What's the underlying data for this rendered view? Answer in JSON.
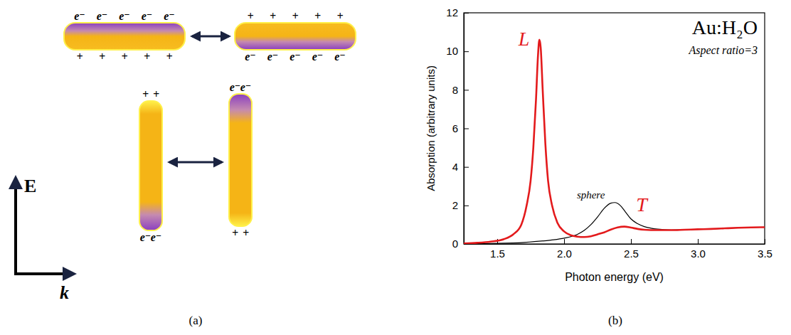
{
  "chart_data": {
    "type": "line",
    "title": "Au:H₂O",
    "subtitle": "Aspect ratio=3",
    "x_label": "Photon energy (eV)",
    "y_label": "Absorption (arbitrary units)",
    "xlim": [
      1.25,
      3.5
    ],
    "ylim": [
      0,
      12
    ],
    "xticks": [
      1.5,
      {
        "value": 2,
        "label": "2.0"
      },
      2.5,
      {
        "value": 3,
        "label": "3.0"
      },
      3.5
    ],
    "yticks": [
      0,
      2,
      4,
      6,
      8,
      10,
      12
    ],
    "grid": false,
    "series": [
      {
        "color": "#e31a1c",
        "x": [
          1.25,
          1.35,
          1.45,
          1.55,
          1.62,
          1.68,
          1.72,
          1.75,
          1.77,
          1.79,
          1.805,
          1.815,
          1.825,
          1.84,
          1.86,
          1.88,
          1.91,
          1.95,
          2.0,
          2.05,
          2.1,
          2.15,
          2.2,
          2.25,
          2.3,
          2.35,
          2.4,
          2.45,
          2.5,
          2.55,
          2.6,
          2.7,
          2.8,
          2.9,
          3.0,
          3.1,
          3.2,
          3.3,
          3.4,
          3.5
        ],
        "values": [
          0.03,
          0.06,
          0.12,
          0.25,
          0.5,
          1.0,
          2.0,
          3.3,
          5.0,
          7.5,
          9.8,
          10.6,
          10.2,
          8.0,
          5.2,
          3.3,
          2.0,
          1.1,
          0.65,
          0.45,
          0.38,
          0.36,
          0.4,
          0.5,
          0.6,
          0.75,
          0.86,
          0.9,
          0.85,
          0.78,
          0.74,
          0.72,
          0.72,
          0.74,
          0.76,
          0.78,
          0.81,
          0.84,
          0.86,
          0.87
        ]
      },
      {
        "color": "#000000",
        "x": [
          1.25,
          1.5,
          1.7,
          1.9,
          2.0,
          2.1,
          2.15,
          2.2,
          2.25,
          2.3,
          2.35,
          2.38,
          2.42,
          2.46,
          2.5,
          2.55,
          2.6,
          2.65,
          2.7,
          2.8,
          2.9,
          3.0,
          3.1,
          3.2,
          3.3,
          3.4,
          3.5
        ],
        "values": [
          0.01,
          0.03,
          0.08,
          0.2,
          0.3,
          0.5,
          0.7,
          1.0,
          1.4,
          1.85,
          2.12,
          2.15,
          2.0,
          1.65,
          1.3,
          1.05,
          0.9,
          0.82,
          0.77,
          0.73,
          0.74,
          0.76,
          0.78,
          0.81,
          0.84,
          0.86,
          0.87
        ]
      }
    ],
    "annotations": [
      {
        "text": "L",
        "x": 1.7,
        "y": 10.3,
        "color": "#e31a1c"
      },
      {
        "text": "T",
        "x": 2.58,
        "y": 1.7,
        "color": "#e31a1c"
      },
      {
        "text": "sphere",
        "x": 2.2,
        "y": 2.35,
        "color": "#000000"
      }
    ]
  },
  "diagram": {
    "rods": [
      {
        "orientation": "horizontal",
        "negative_side": "top",
        "top": [
          "e⁻",
          "e⁻",
          "e⁻",
          "e⁻",
          "e⁻"
        ],
        "bottom": [
          "+",
          "+",
          "+",
          "+",
          "+"
        ]
      },
      {
        "orientation": "horizontal",
        "negative_side": "bottom",
        "top": [
          "+",
          "+",
          "+",
          "+",
          "+"
        ],
        "bottom": [
          "e⁻",
          "e⁻",
          "e⁻",
          "e⁻",
          "e⁻"
        ]
      },
      {
        "orientation": "vertical",
        "negative_side": "bottom",
        "top": [
          "+",
          "+"
        ],
        "bottom": [
          "e⁻",
          "e⁻"
        ]
      },
      {
        "orientation": "vertical",
        "negative_side": "top",
        "top": [
          "e⁻",
          "e⁻"
        ],
        "bottom": [
          "+",
          "+"
        ]
      }
    ],
    "field_label": "E",
    "wave_label": "k"
  },
  "panel_labels": [
    "(a)",
    "(b)"
  ]
}
